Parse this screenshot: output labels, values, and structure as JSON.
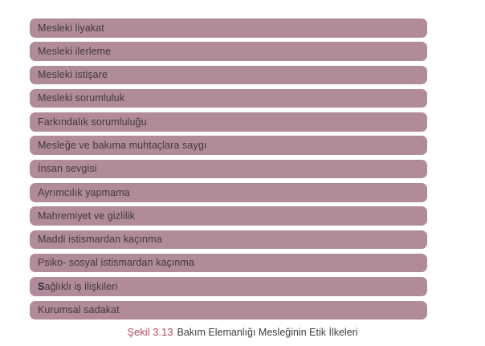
{
  "figure": {
    "bars": [
      {
        "label": "Mesleki liyakat"
      },
      {
        "label": "Mesleki ilerleme"
      },
      {
        "label": "Mesleki istişare"
      },
      {
        "label": "Mesleki sorumluluk"
      },
      {
        "label": "Farkındalık sorumluluğu"
      },
      {
        "label": "Mesleğe ve bakıma muhtaçlara saygı"
      },
      {
        "label": "İnsan sevgisi"
      },
      {
        "label": "Ayrımcılık yapmama"
      },
      {
        "label": "Mahremiyet ve gizlilik"
      },
      {
        "label": "Maddi istismardan kaçınma"
      },
      {
        "label": "Psiko- sosyal istismardan kaçınma"
      },
      {
        "label": "Sağlıklı iş ilişkileri",
        "bold_first_letter": true
      },
      {
        "label": "Kurumsal sadakat"
      }
    ],
    "caption": {
      "label": "Şekil 3.13",
      "text": "Bakım Elemanlığı Mesleğinin Etik İlkeleri"
    },
    "colors": {
      "page_bg": "#ffffff",
      "bar_fill": "#b18b99",
      "bar_text": "#3f393b",
      "caption_label": "#b14d5e",
      "caption_text": "#3d3d3d"
    }
  }
}
